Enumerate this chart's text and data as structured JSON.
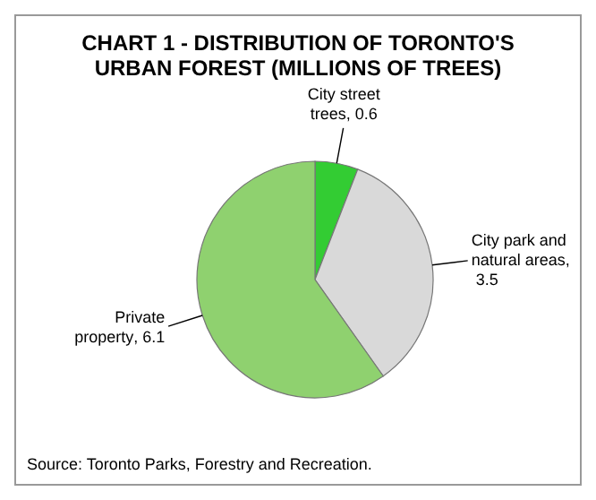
{
  "chart_data": {
    "type": "pie",
    "title": "CHART 1 - DISTRIBUTION OF TORONTO'S URBAN FOREST (MILLIONS OF TREES)",
    "categories": [
      "City street trees",
      "City park and natural areas",
      "Private property"
    ],
    "values": [
      0.6,
      3.5,
      6.1
    ],
    "colors": [
      "#33cc33",
      "#d9d9d9",
      "#8fd16f"
    ],
    "value_labels": [
      ", 0.6",
      ", 3.5",
      ", 6.1"
    ],
    "annotations": [
      "Source: Toronto Parks, Forestry and Recreation."
    ]
  }
}
